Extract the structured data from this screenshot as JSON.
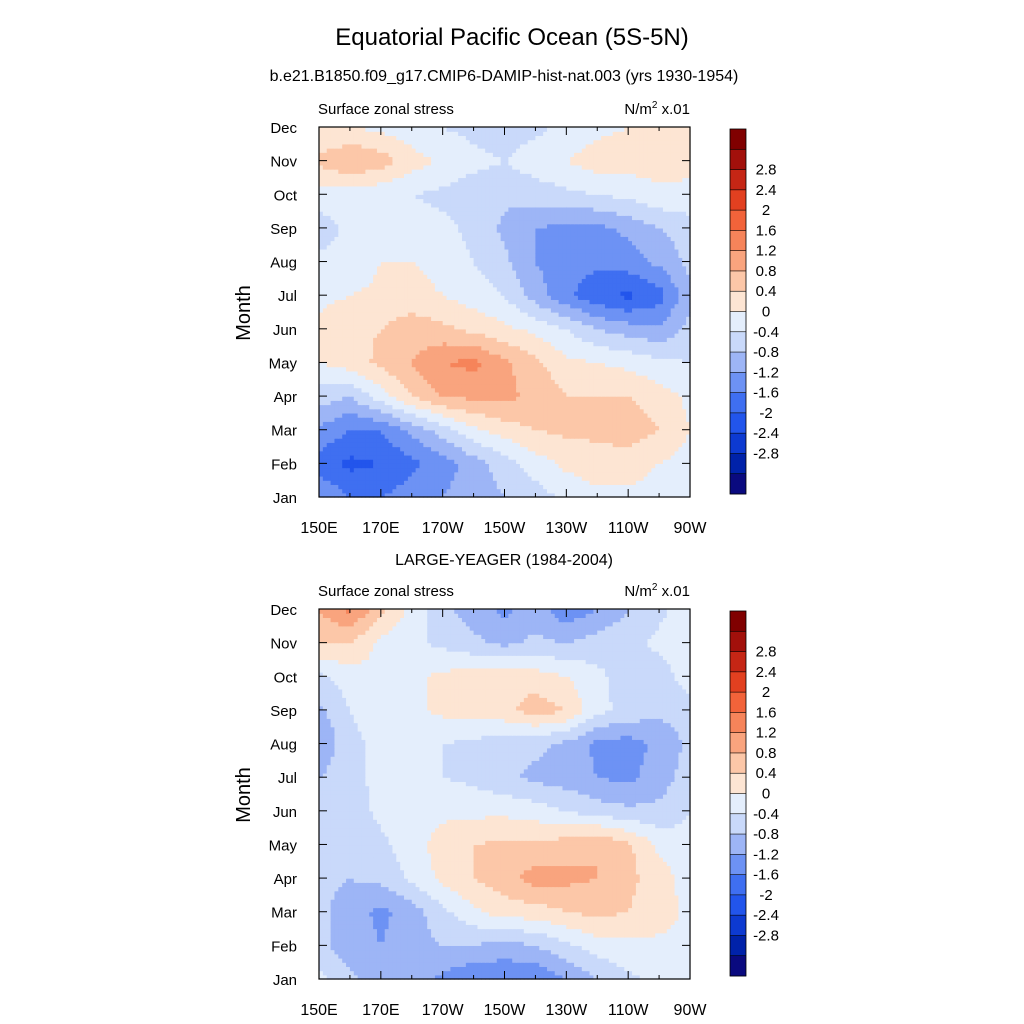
{
  "figure": {
    "title": "Equatorial Pacific Ocean (5S-5N)"
  },
  "colorbar": {
    "colors": [
      "#0a0a7f",
      "#0022a9",
      "#0d3ad1",
      "#2255ec",
      "#3f6ff1",
      "#6d92f4",
      "#9db5f6",
      "#c9d9fa",
      "#e4eefc",
      "#fde5d3",
      "#fcc7a8",
      "#f9a47e",
      "#f6845a",
      "#f2633a",
      "#e24020",
      "#c52615",
      "#a2100b",
      "#800000"
    ],
    "labels": [
      "-2.8",
      "-2.4",
      "-2",
      "-1.6",
      "-1.2",
      "-0.8",
      "-0.4",
      "0",
      "0.4",
      "0.8",
      "1.2",
      "1.6",
      "2",
      "2.4",
      "2.8"
    ]
  },
  "chart_data": [
    {
      "type": "heatmap",
      "title": "b.e21.B1850.f09_g17.CMIP6-DAMIP-hist-nat.003 (yrs 1930-1954)",
      "left_label": "Surface zonal stress",
      "right_label_base": "N/m",
      "right_label_sup": "2",
      "right_label_tail": " x.01",
      "ylabel": "Month",
      "x_tick_labels": [
        "150E",
        "170E",
        "170W",
        "150W",
        "130W",
        "110W",
        "90W"
      ],
      "y_tick_labels": [
        "Jan",
        "Feb",
        "Mar",
        "Apr",
        "May",
        "Jun",
        "Jul",
        "Aug",
        "Sep",
        "Oct",
        "Nov",
        "Dec"
      ],
      "x_longitudes": [
        150,
        160,
        170,
        180,
        190,
        200,
        210,
        220,
        230,
        240,
        250,
        260,
        270
      ],
      "x_range": [
        150,
        270
      ],
      "y_range": [
        1,
        12
      ],
      "z_levels": [
        -2.8,
        -2.4,
        -2,
        -1.6,
        -1.2,
        -0.8,
        -0.4,
        0,
        0.4,
        0.8,
        1.2,
        1.6,
        2,
        2.4,
        2.8
      ],
      "z_values": [
        [
          -0.8,
          -1.2,
          -1.2,
          -1.0,
          -0.8,
          -0.6,
          -0.4,
          -0.2,
          0.1,
          0.3,
          0.3,
          0.2,
          0.1
        ],
        [
          -1.4,
          -1.7,
          -1.6,
          -1.3,
          -1.0,
          -0.6,
          -0.2,
          0.2,
          0.5,
          0.6,
          0.6,
          0.4,
          0.2
        ],
        [
          -0.9,
          -1.2,
          -1.2,
          -0.7,
          -0.2,
          0.3,
          0.6,
          0.8,
          0.9,
          0.9,
          1.0,
          0.8,
          0.4
        ],
        [
          -0.2,
          -0.4,
          0.2,
          0.8,
          1.2,
          1.3,
          1.3,
          1.1,
          0.8,
          0.8,
          0.8,
          0.6,
          0.3
        ],
        [
          0.4,
          0.6,
          0.9,
          1.2,
          1.6,
          1.7,
          1.3,
          0.9,
          0.5,
          0.4,
          0.3,
          0.1,
          0.0
        ],
        [
          0.5,
          0.7,
          0.8,
          1.0,
          0.9,
          0.7,
          0.5,
          0.3,
          0.0,
          -0.4,
          -0.6,
          -0.7,
          -0.3
        ],
        [
          0.3,
          0.4,
          0.5,
          0.6,
          0.4,
          0.2,
          0.0,
          -0.6,
          -1.1,
          -1.5,
          -1.7,
          -1.4,
          -0.5
        ],
        [
          0.1,
          0.1,
          0.4,
          0.4,
          0.2,
          0.0,
          -0.3,
          -0.8,
          -1.0,
          -1.1,
          -1.0,
          -0.7,
          -0.3
        ],
        [
          -0.2,
          0.1,
          0.2,
          0.2,
          0.1,
          -0.1,
          -0.5,
          -0.8,
          -0.9,
          -0.9,
          -0.7,
          -0.4,
          -0.2
        ],
        [
          0.2,
          0.2,
          0.1,
          0.0,
          -0.1,
          -0.2,
          -0.3,
          -0.2,
          -0.1,
          0.0,
          0.1,
          0.3,
          0.3
        ],
        [
          0.9,
          1.2,
          1.0,
          0.6,
          0.3,
          0.1,
          0.0,
          0.2,
          0.4,
          0.6,
          0.6,
          0.6,
          0.5
        ],
        [
          0.4,
          0.4,
          0.3,
          0.1,
          0.0,
          -0.1,
          -0.2,
          -0.1,
          0.1,
          0.3,
          0.4,
          0.4,
          0.4
        ]
      ]
    },
    {
      "type": "heatmap",
      "title": "LARGE-YEAGER (1984-2004)",
      "left_label": "Surface zonal stress",
      "right_label_base": "N/m",
      "right_label_sup": "2",
      "right_label_tail": " x.01",
      "ylabel": "Month",
      "x_tick_labels": [
        "150E",
        "170E",
        "170W",
        "150W",
        "130W",
        "110W",
        "90W"
      ],
      "y_tick_labels": [
        "Jan",
        "Feb",
        "Mar",
        "Apr",
        "May",
        "Jun",
        "Jul",
        "Aug",
        "Sep",
        "Oct",
        "Nov",
        "Dec"
      ],
      "x_longitudes": [
        150,
        160,
        170,
        180,
        190,
        200,
        210,
        220,
        230,
        240,
        250,
        260,
        270
      ],
      "x_range": [
        150,
        270
      ],
      "y_range": [
        1,
        12
      ],
      "z_values": [
        [
          0.1,
          -0.3,
          -0.6,
          -0.6,
          -0.9,
          -1.2,
          -1.1,
          -1.2,
          -0.8,
          -0.4,
          -0.1,
          0.1,
          0.2
        ],
        [
          -0.3,
          -0.6,
          -0.8,
          -0.6,
          -0.4,
          -0.4,
          -0.6,
          -0.4,
          -0.1,
          0.2,
          0.3,
          0.3,
          0.3
        ],
        [
          -0.3,
          -0.6,
          -0.9,
          -0.6,
          -0.1,
          0.3,
          0.6,
          0.6,
          0.8,
          0.9,
          0.8,
          0.6,
          0.3
        ],
        [
          -0.3,
          -0.4,
          -0.3,
          0.1,
          0.5,
          0.8,
          1.0,
          1.4,
          1.3,
          1.2,
          0.9,
          0.6,
          0.2
        ],
        [
          -0.3,
          -0.3,
          -0.1,
          0.2,
          0.6,
          0.8,
          0.9,
          0.9,
          1.0,
          1.2,
          0.9,
          0.3,
          0.1
        ],
        [
          -0.2,
          -0.2,
          0.1,
          0.2,
          0.3,
          0.3,
          0.3,
          0.2,
          0.0,
          -0.2,
          -0.3,
          -0.3,
          0.0
        ],
        [
          -0.4,
          -0.1,
          0.1,
          0.1,
          0.0,
          -0.1,
          -0.3,
          -0.5,
          -0.6,
          -0.8,
          -0.9,
          -0.6,
          -0.2
        ],
        [
          -0.8,
          -0.1,
          0.1,
          0.1,
          0.0,
          -0.1,
          -0.3,
          -0.3,
          -0.5,
          -0.9,
          -1.0,
          -0.7,
          -0.3
        ],
        [
          -0.5,
          0.0,
          0.2,
          0.3,
          0.5,
          0.6,
          0.7,
          1.0,
          0.8,
          0.1,
          -0.1,
          -0.3,
          -0.2
        ],
        [
          -0.1,
          0.2,
          0.3,
          0.3,
          0.5,
          0.6,
          0.7,
          0.6,
          0.4,
          0.1,
          -0.2,
          -0.2,
          0.2
        ],
        [
          0.8,
          0.8,
          0.3,
          0.1,
          -0.1,
          -0.3,
          -0.5,
          -0.3,
          -0.4,
          -0.2,
          -0.1,
          0.1,
          0.3
        ],
        [
          1.2,
          1.7,
          0.9,
          0.3,
          -0.3,
          -0.6,
          -0.9,
          -0.6,
          -1.1,
          -0.8,
          -0.4,
          -0.1,
          0.2
        ]
      ]
    }
  ]
}
